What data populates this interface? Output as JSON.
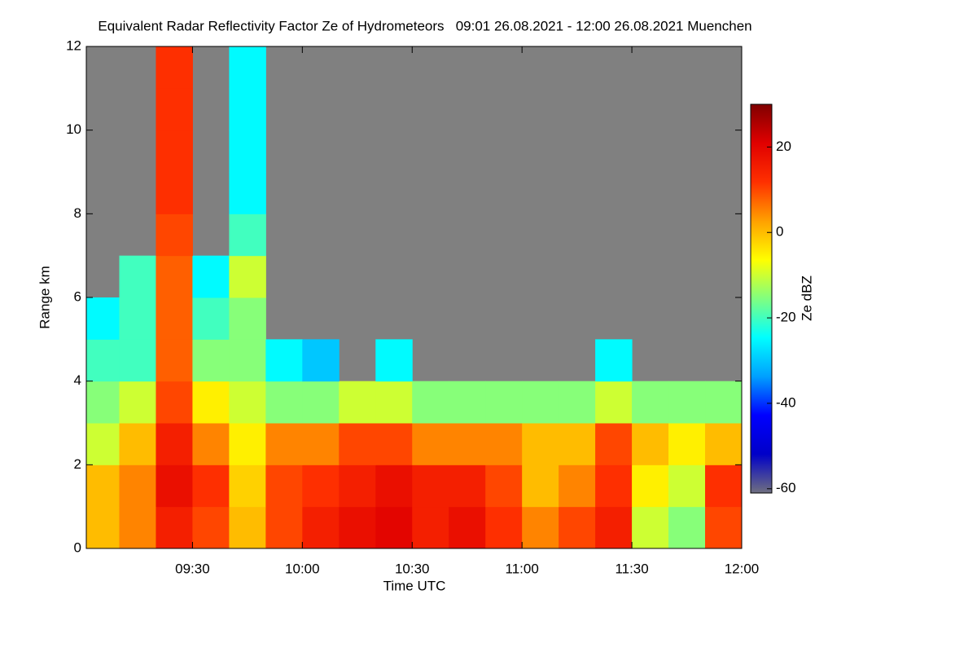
{
  "chart_data": {
    "type": "heatmap",
    "title": "Equivalent Radar Reflectivity Factor Ze of Hydrometeors   09:01 26.08.2021 - 12:00 26.08.2021 Muenchen",
    "xlabel": "Time UTC",
    "ylabel": "Range km",
    "colorbar_label": "Ze dBZ",
    "xlim": [
      541,
      720
    ],
    "ylim": [
      0,
      12
    ],
    "xticks": [
      {
        "value": 570,
        "label": "09:30"
      },
      {
        "value": 600,
        "label": "10:00"
      },
      {
        "value": 630,
        "label": "10:30"
      },
      {
        "value": 660,
        "label": "11:00"
      },
      {
        "value": 690,
        "label": "11:30"
      },
      {
        "value": 720,
        "label": "12:00"
      }
    ],
    "yticks": [
      0,
      2,
      4,
      6,
      8,
      10,
      12
    ],
    "x_edges": [
      541,
      550,
      560,
      570,
      580,
      590,
      600,
      610,
      620,
      630,
      640,
      650,
      660,
      670,
      680,
      690,
      700,
      710,
      720
    ],
    "y_edges": [
      0,
      1,
      2,
      3,
      4,
      5,
      6,
      7,
      8,
      9,
      10,
      11,
      12
    ],
    "z": [
      [
        0,
        5,
        15,
        10,
        0,
        10,
        15,
        18,
        20,
        15,
        18,
        12,
        5,
        10,
        15,
        -10,
        -15,
        10
      ],
      [
        0,
        5,
        18,
        12,
        -2,
        10,
        12,
        15,
        18,
        15,
        15,
        10,
        0,
        5,
        12,
        -5,
        -10,
        12
      ],
      [
        -10,
        0,
        15,
        5,
        -5,
        5,
        5,
        10,
        10,
        5,
        5,
        5,
        0,
        0,
        10,
        0,
        -5,
        0
      ],
      [
        -15,
        -10,
        10,
        -5,
        -10,
        -15,
        -15,
        -10,
        -10,
        -15,
        -15,
        -15,
        -15,
        -15,
        -10,
        -15,
        -15,
        -15
      ],
      [
        -20,
        -20,
        8,
        -15,
        -15,
        -25,
        -30,
        null,
        -25,
        null,
        null,
        null,
        null,
        null,
        -25,
        null,
        null,
        null
      ],
      [
        -25,
        -20,
        8,
        -20,
        -15,
        null,
        null,
        null,
        null,
        null,
        null,
        null,
        null,
        null,
        null,
        null,
        null,
        null
      ],
      [
        null,
        -20,
        8,
        -25,
        -10,
        null,
        null,
        null,
        null,
        null,
        null,
        null,
        null,
        null,
        null,
        null,
        null,
        null
      ],
      [
        null,
        null,
        10,
        null,
        -20,
        null,
        null,
        null,
        null,
        null,
        null,
        null,
        null,
        null,
        null,
        null,
        null,
        null
      ],
      [
        null,
        null,
        12,
        null,
        -25,
        null,
        null,
        null,
        null,
        null,
        null,
        null,
        null,
        null,
        null,
        null,
        null,
        null
      ],
      [
        null,
        null,
        12,
        null,
        -25,
        null,
        null,
        null,
        null,
        null,
        null,
        null,
        null,
        null,
        null,
        null,
        null,
        null
      ],
      [
        null,
        null,
        12,
        null,
        -25,
        null,
        null,
        null,
        null,
        null,
        null,
        null,
        null,
        null,
        null,
        null,
        null,
        null
      ],
      [
        null,
        null,
        12,
        null,
        -25,
        null,
        null,
        null,
        null,
        null,
        null,
        null,
        null,
        null,
        null,
        null,
        null,
        null
      ]
    ],
    "clim": [
      -61,
      30
    ],
    "cticks": [
      -60,
      -40,
      -20,
      0,
      20
    ],
    "background": "#808080",
    "colorscale": [
      "#707080",
      "#0000c8",
      "#0000ff",
      "#00a0ff",
      "#00ffff",
      "#80ff80",
      "#ffff00",
      "#ffa000",
      "#ff3000",
      "#e00000",
      "#800000"
    ]
  }
}
